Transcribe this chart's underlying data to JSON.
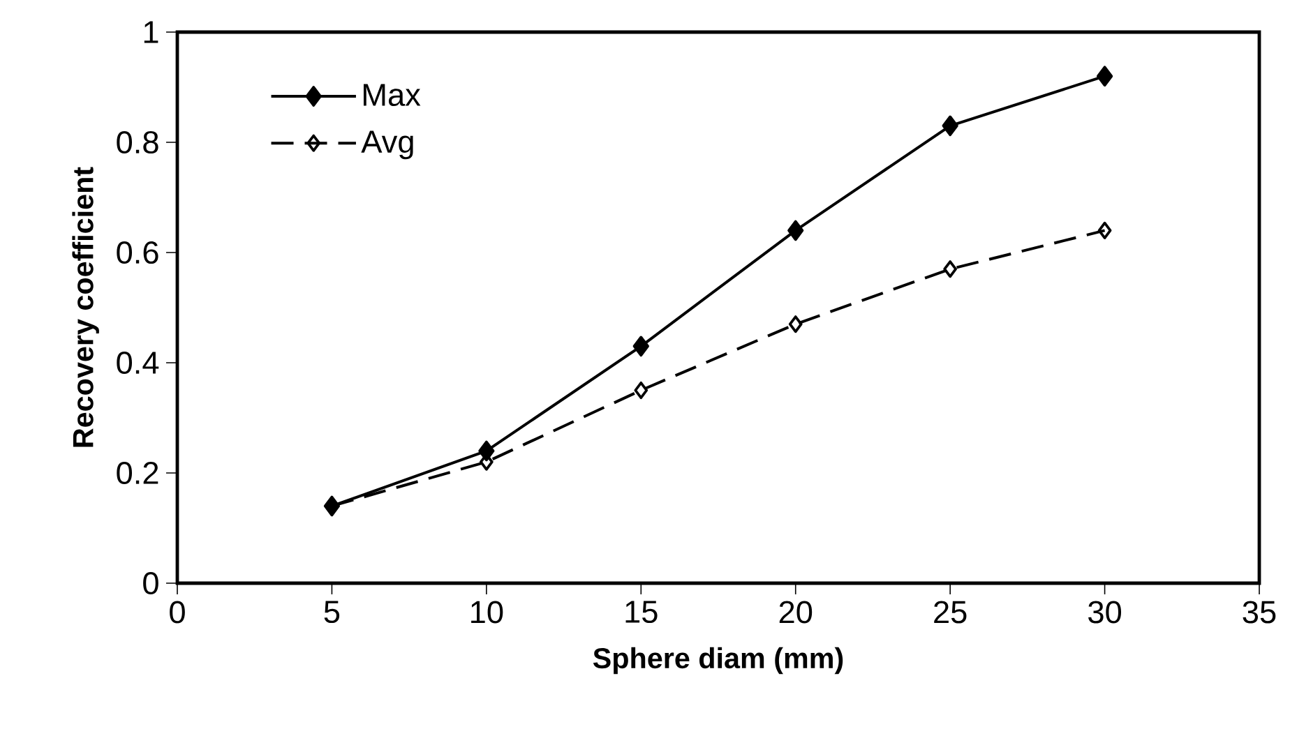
{
  "chart_data": {
    "type": "line",
    "xlabel": "Sphere diam (mm)",
    "ylabel": "Recovery coefficient",
    "x": [
      5,
      10,
      15,
      20,
      25,
      30
    ],
    "series": [
      {
        "name": "Max",
        "color": "#000000",
        "values": [
          0.14,
          0.24,
          0.43,
          0.64,
          0.83,
          0.92
        ],
        "marker": "diamond",
        "line_style": "solid"
      },
      {
        "name": "Avg",
        "color": "#000000",
        "values": [
          0.14,
          0.22,
          0.35,
          0.47,
          0.57,
          0.64
        ],
        "marker": "diamond_open",
        "line_style": "dashed"
      }
    ],
    "xlim": [
      0,
      35
    ],
    "xticks": [
      0,
      5,
      10,
      15,
      20,
      25,
      30,
      35
    ],
    "ylim": [
      0,
      1
    ],
    "yticks": [
      0,
      0.2,
      0.4,
      0.6,
      0.8,
      1
    ],
    "grid": false,
    "legend": "top left"
  }
}
